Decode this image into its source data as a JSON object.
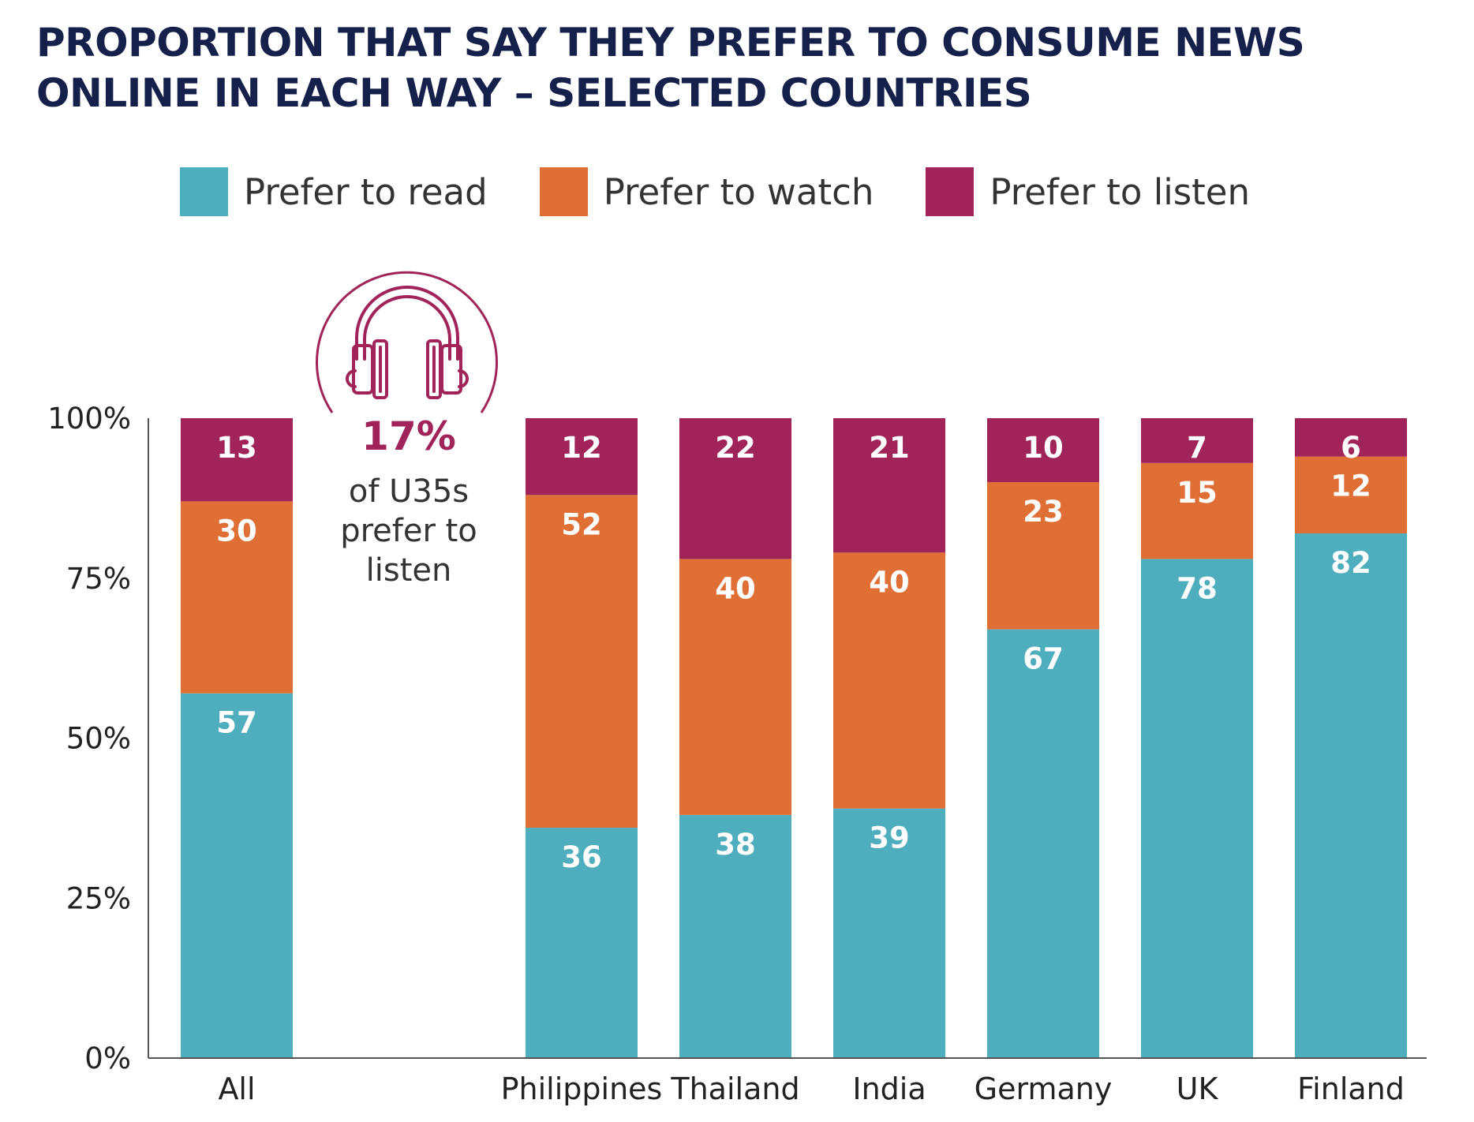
{
  "title_lines": [
    "PROPORTION THAT SAY THEY PREFER TO CONSUME NEWS",
    "ONLINE IN EACH WAY – SELECTED COUNTRIES"
  ],
  "colors": {
    "read": "#4faebd",
    "watch": "#df6f35",
    "listen": "#a0245a",
    "title": "#15214b",
    "axis": "#555555"
  },
  "callout": {
    "icon": "headphones-icon",
    "value": "17%",
    "text_lines": [
      "of U35s",
      "prefer to",
      "listen"
    ]
  },
  "chart_data": {
    "type": "bar",
    "stacked": true,
    "title": "PROPORTION THAT SAY THEY PREFER TO CONSUME NEWS ONLINE IN EACH WAY – SELECTED COUNTRIES",
    "categories": [
      "All",
      "Philippines",
      "Thailand",
      "India",
      "Germany",
      "UK",
      "Finland"
    ],
    "series": [
      {
        "name": "Prefer to read",
        "values": [
          57,
          36,
          38,
          39,
          67,
          78,
          82
        ]
      },
      {
        "name": "Prefer to watch",
        "values": [
          30,
          52,
          40,
          40,
          23,
          15,
          12
        ]
      },
      {
        "name": "Prefer to listen",
        "values": [
          13,
          12,
          22,
          21,
          10,
          7,
          6
        ]
      }
    ],
    "yticks": [
      "0%",
      "25%",
      "50%",
      "75%",
      "100%"
    ],
    "ylim": [
      0,
      100
    ],
    "xlabel": "",
    "ylabel": "",
    "grid": false,
    "legend": "top"
  }
}
